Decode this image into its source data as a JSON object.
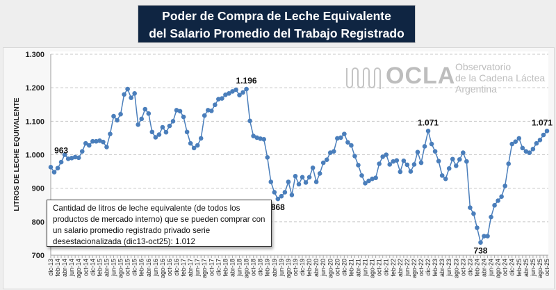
{
  "title": {
    "line1": "Poder de Compra de Leche Equivalente",
    "line2": "del Salario Promedio del Trabajo Registrado"
  },
  "logo": {
    "brand": "OCLA",
    "line1": "Observatorio",
    "line2": "de la Cadena Láctea",
    "line3": "Argentina"
  },
  "note": "Cantidad de litros de leche equivalente (de todos los productos de mercado interno) que se pueden comprar con un salario promedio registrado privado serie desestacionalizada (dic13-oct25): 1.012",
  "colors": {
    "line": "#4a7ebb",
    "title_bg": "#0f2542"
  },
  "chart_data": {
    "type": "line",
    "title": "Poder de Compra de Leche Equivalente del Salario Promedio del Trabajo Registrado",
    "ylabel": "LITROS DE LECHE EQUIVALENTE",
    "xlabel": "",
    "ylim": [
      700,
      1300
    ],
    "yticks": [
      700,
      800,
      900,
      1000,
      1100,
      1200,
      1300
    ],
    "ytick_labels": [
      "700",
      "800",
      "900",
      "1.000",
      "1.100",
      "1.200",
      "1.300"
    ],
    "grid": true,
    "start": "dic-13",
    "end": "oct-25",
    "xtick_labels": [
      "dic-13",
      "feb-14",
      "abr-14",
      "jun-14",
      "ago-14",
      "oct-14",
      "dic-14",
      "feb-15",
      "abr-15",
      "jun-15",
      "ago-15",
      "oct-15",
      "dic-15",
      "feb-16",
      "abr-16",
      "jun-16",
      "ago-16",
      "oct-16",
      "dic-16",
      "feb-17",
      "abr-17",
      "jun-17",
      "ago-17",
      "oct-17",
      "dic-17",
      "feb-18",
      "abr-18",
      "jun-18",
      "ago-18",
      "oct-18",
      "dic-18",
      "feb-19",
      "abr-19",
      "jun-19",
      "ago-19",
      "oct-19",
      "dic-19",
      "feb-20",
      "abr-20",
      "jun-20",
      "ago-20",
      "oct-20",
      "dic-20",
      "feb-21",
      "abr-21",
      "jun-21",
      "ago-21",
      "oct-21",
      "dic-21",
      "feb-22",
      "abr-22",
      "jun-22",
      "ago-22",
      "oct-22",
      "dic-22",
      "feb-23",
      "abr-23",
      "jun-23",
      "ago-23",
      "oct-23",
      "dic-23",
      "feb-24",
      "abr-24",
      "jun-24",
      "ago-24",
      "oct-24",
      "dic-24",
      "feb-25",
      "abr-25",
      "jun-25",
      "ago-25",
      "oct-25"
    ],
    "values": [
      963,
      948,
      960,
      978,
      1000,
      988,
      990,
      993,
      991,
      1010,
      1034,
      1028,
      1040,
      1040,
      1042,
      1038,
      1023,
      1062,
      1115,
      1103,
      1121,
      1180,
      1196,
      1170,
      1183,
      1090,
      1107,
      1136,
      1123,
      1068,
      1052,
      1060,
      1082,
      1067,
      1086,
      1100,
      1133,
      1130,
      1113,
      1068,
      1034,
      1020,
      1028,
      1049,
      1117,
      1133,
      1131,
      1149,
      1166,
      1168,
      1179,
      1183,
      1189,
      1194,
      1178,
      1186,
      1196,
      1101,
      1056,
      1051,
      1048,
      1046,
      992,
      919,
      888,
      868,
      876,
      888,
      919,
      880,
      936,
      912,
      933,
      917,
      933,
      961,
      919,
      944,
      976,
      985,
      1006,
      1010,
      1049,
      1051,
      1062,
      1037,
      1028,
      996,
      969,
      938,
      915,
      922,
      928,
      931,
      973,
      994,
      1000,
      971,
      980,
      983,
      949,
      982,
      970,
      950,
      971,
      1008,
      976,
      1025,
      1071,
      1032,
      1010,
      981,
      938,
      928,
      959,
      987,
      967,
      986,
      1006,
      980,
      842,
      824,
      782,
      738,
      757,
      757,
      814,
      849,
      863,
      875,
      907,
      973,
      1032,
      1039,
      1049,
      1020,
      1010,
      1006,
      1017,
      1034,
      1044,
      1059,
      1071
    ],
    "annotations": [
      {
        "index": 0,
        "label": "963"
      },
      {
        "index": 56,
        "label": "1.196"
      },
      {
        "index": 65,
        "label": "868"
      },
      {
        "index": 108,
        "label": "1.071"
      },
      {
        "index": 123,
        "label": "738"
      },
      {
        "index": 142,
        "label": "1.071"
      }
    ]
  }
}
